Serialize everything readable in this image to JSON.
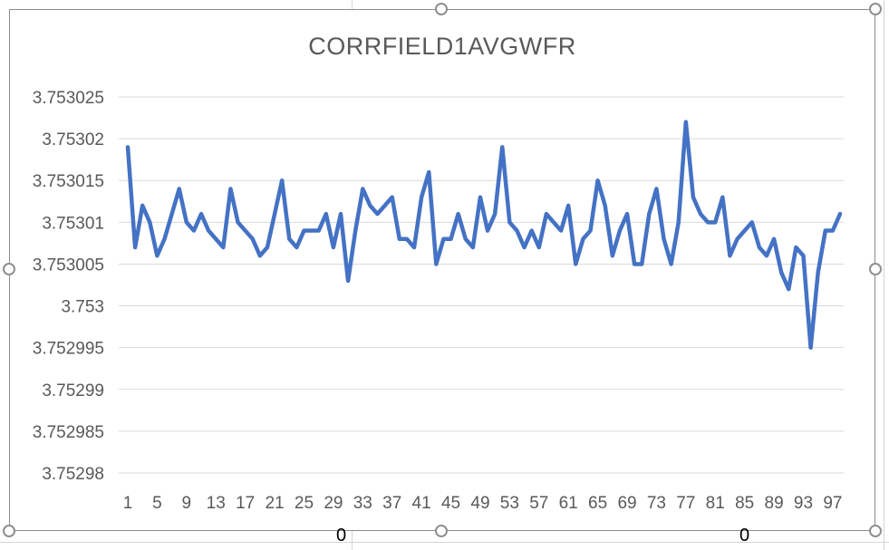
{
  "sheet": {
    "cell_values": [
      "0",
      "0"
    ]
  },
  "chart_data": {
    "type": "line",
    "title": "CORRFIELD1AVGWFR",
    "xlabel": "",
    "ylabel": "",
    "ylim": [
      3.75298,
      3.753025
    ],
    "yticks": [
      "3.75298",
      "3.752985",
      "3.75299",
      "3.752995",
      "3.753",
      "3.753005",
      "3.75301",
      "3.753015",
      "3.75302",
      "3.753025"
    ],
    "xticks": [
      "1",
      "5",
      "9",
      "13",
      "17",
      "21",
      "25",
      "29",
      "33",
      "37",
      "41",
      "45",
      "49",
      "53",
      "57",
      "61",
      "65",
      "69",
      "73",
      "77",
      "81",
      "85",
      "89",
      "93",
      "97"
    ],
    "x": [
      1,
      2,
      3,
      4,
      5,
      6,
      7,
      8,
      9,
      10,
      11,
      12,
      13,
      14,
      15,
      16,
      17,
      18,
      19,
      20,
      21,
      22,
      23,
      24,
      25,
      26,
      27,
      28,
      29,
      30,
      31,
      32,
      33,
      34,
      35,
      36,
      37,
      38,
      39,
      40,
      41,
      42,
      43,
      44,
      45,
      46,
      47,
      48,
      49,
      50,
      51,
      52,
      53,
      54,
      55,
      56,
      57,
      58,
      59,
      60,
      61,
      62,
      63,
      64,
      65,
      66,
      67,
      68,
      69,
      70,
      71,
      72,
      73,
      74,
      75,
      76,
      77,
      78,
      79,
      80,
      81,
      82,
      83,
      84,
      85,
      86,
      87,
      88,
      89,
      90,
      91,
      92,
      93,
      94,
      95,
      96,
      97,
      98
    ],
    "series": [
      {
        "color": "#4472c4",
        "values": [
          3.753019,
          3.753007,
          3.753012,
          3.75301,
          3.753006,
          3.753008,
          3.753011,
          3.753014,
          3.75301,
          3.753009,
          3.753011,
          3.753009,
          3.753008,
          3.753007,
          3.753014,
          3.75301,
          3.753009,
          3.753008,
          3.753006,
          3.753007,
          3.753011,
          3.753015,
          3.753008,
          3.753007,
          3.753009,
          3.753009,
          3.753009,
          3.753011,
          3.753007,
          3.753011,
          3.753003,
          3.753009,
          3.753014,
          3.753012,
          3.753011,
          3.753012,
          3.753013,
          3.753008,
          3.753008,
          3.753007,
          3.753013,
          3.753016,
          3.753005,
          3.753008,
          3.753008,
          3.753011,
          3.753008,
          3.753007,
          3.753013,
          3.753009,
          3.753011,
          3.753019,
          3.75301,
          3.753009,
          3.753007,
          3.753009,
          3.753007,
          3.753011,
          3.75301,
          3.753009,
          3.753012,
          3.753005,
          3.753008,
          3.753009,
          3.753015,
          3.753012,
          3.753006,
          3.753009,
          3.753011,
          3.753005,
          3.753005,
          3.753011,
          3.753014,
          3.753008,
          3.753005,
          3.75301,
          3.753022,
          3.753013,
          3.753011,
          3.75301,
          3.75301,
          3.753013,
          3.753006,
          3.753008,
          3.753009,
          3.75301,
          3.753007,
          3.753006,
          3.753008,
          3.753004,
          3.753002,
          3.753007,
          3.753006,
          3.752995,
          3.753004,
          3.753009,
          3.753009,
          3.753011
        ]
      }
    ],
    "grid": true,
    "legend": "none"
  }
}
